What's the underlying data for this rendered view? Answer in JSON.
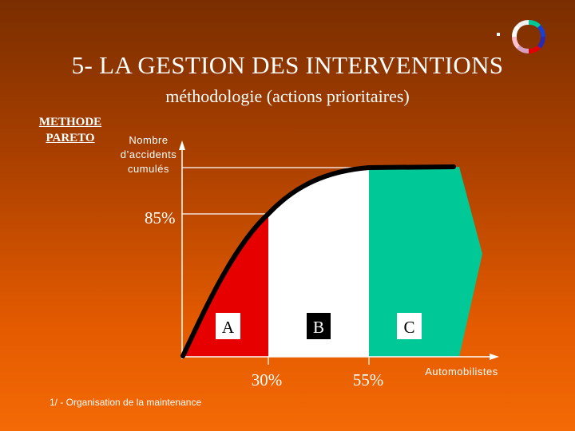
{
  "slide": {
    "title": "5- LA GESTION DES INTERVENTIONS",
    "subtitle": "méthodologie (actions prioritaires)",
    "method_line1": "METHODE",
    "method_line2": "PARETO",
    "footer": "1/ - Organisation de la maintenance"
  },
  "chart_data": {
    "type": "area",
    "ylabel": [
      "Nombre",
      "d’accidents",
      "cumulés"
    ],
    "xlabel": "Automobilistes",
    "y_marker": "85%",
    "x_markers": [
      "30%",
      "55%"
    ],
    "zones": [
      {
        "label": "A",
        "color": "#e60000"
      },
      {
        "label": "B",
        "color": "#ffffff"
      },
      {
        "label": "C",
        "color": "#00c896"
      }
    ]
  },
  "colors": {
    "zone_a": "#e60000",
    "zone_b": "#ffffff",
    "zone_c": "#00c896",
    "curve": "#000000"
  },
  "logo": {
    "icon": "color-ring-logo"
  }
}
